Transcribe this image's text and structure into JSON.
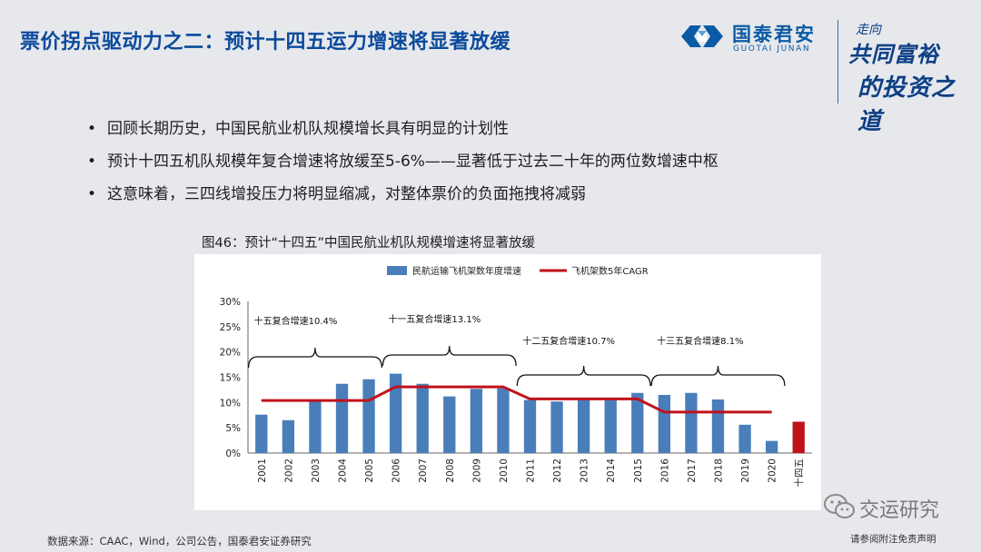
{
  "slide": {
    "title": "票价拐点驱动力之二：预计十四五运力增速将显著放缓",
    "bullets": [
      "回顾长期历史，中国民航业机队规模增长具有明显的计划性",
      "预计十四五机队规模年复合增速将放缓至5-6%——显著低于过去二十年的两位数增速中枢",
      "这意味着，三四线增投压力将明显缩减，对整体票价的负面拖拽将减弱"
    ],
    "bullet_glyph": "•",
    "figure_caption": "图46：预计“十四五”中国民航业机队规模增速将显著放缓",
    "source": "数据来源：CAAC，Wind，公司公告，国泰君安证券研究",
    "disclaimer": "请参阅附注免责声明"
  },
  "brand": {
    "name_cn": "国泰君安",
    "name_en": "GUOTAI JUNAN",
    "slogan_line1": "走向",
    "slogan_line2": "共同富裕",
    "slogan_line3": "的投资之道",
    "primary_color": "#0b4a9c",
    "logo_color": "#0b5aa6"
  },
  "watermark": {
    "text": "交运研究",
    "icon": "wechat-icon"
  },
  "chart_data": {
    "type": "bar",
    "categories": [
      "2001",
      "2002",
      "2003",
      "2004",
      "2005",
      "2006",
      "2007",
      "2008",
      "2009",
      "2010",
      "2011",
      "2012",
      "2013",
      "2014",
      "2015",
      "2016",
      "2017",
      "2018",
      "2019",
      "2020",
      "十四五"
    ],
    "series": [
      {
        "name": "民航运输飞机架数年度增速",
        "type": "bar",
        "color": "#4a7ebb",
        "values": [
          7.6,
          6.5,
          10.5,
          13.7,
          14.6,
          15.7,
          13.7,
          11.2,
          12.7,
          12.8,
          10.5,
          10.2,
          10.8,
          10.6,
          11.9,
          11.5,
          11.9,
          10.6,
          5.6,
          2.4,
          null
        ]
      },
      {
        "name": "飞机架数5年CAGR",
        "type": "line",
        "color": "#c0121b",
        "values": [
          10.4,
          10.4,
          10.4,
          10.4,
          10.4,
          13.1,
          13.1,
          13.1,
          13.1,
          13.1,
          10.7,
          10.7,
          10.7,
          10.7,
          10.7,
          8.1,
          8.1,
          8.1,
          8.1,
          8.1,
          null
        ]
      }
    ],
    "highlight": {
      "category": "十四五",
      "value": 6.2,
      "color": "#c0121b"
    },
    "y_ticks": [
      "0%",
      "5%",
      "10%",
      "15%",
      "20%",
      "25%",
      "30%"
    ],
    "ylim": [
      0,
      30
    ],
    "legend_position": "top",
    "annotations": [
      {
        "text": "十五复合增速10.4%",
        "from": "2001",
        "to": "2005"
      },
      {
        "text": "十一五复合增速13.1%",
        "from": "2006",
        "to": "2010"
      },
      {
        "text": "十二五复合增速10.7%",
        "from": "2011",
        "to": "2015"
      },
      {
        "text": "十三五复合增速8.1%",
        "from": "2016",
        "to": "2020"
      }
    ]
  }
}
